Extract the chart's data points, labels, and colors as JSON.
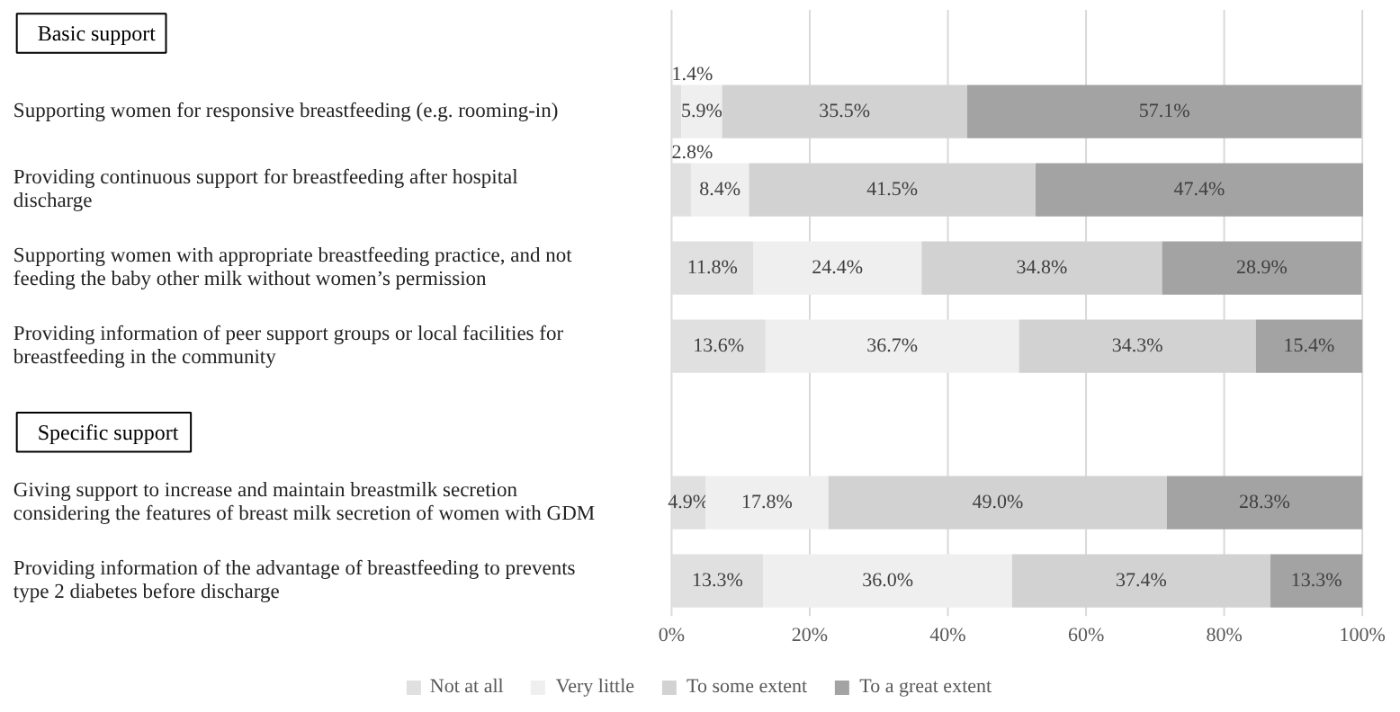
{
  "chart_data": {
    "type": "bar",
    "orientation": "horizontal",
    "stacked": true,
    "categories": [
      "Supporting women for responsive breastfeeding (e.g. rooming-in)",
      "Providing continuous support for breastfeeding after hospital discharge",
      "Supporting women with appropriate breastfeeding practice, and not feeding the baby other milk without women’s permission",
      "Providing information of peer support groups or local facilities for breastfeeding in the community",
      null,
      "Giving support to increase and maintain breastmilk secretion considering the features of breast milk secretion of women with GDM",
      "Providing information of the advantage of breastfeeding to prevents type 2 diabetes before discharge"
    ],
    "series": [
      {
        "name": "Not at all",
        "color": "#e0e0e0",
        "values": [
          1.4,
          2.8,
          11.8,
          13.6,
          null,
          4.9,
          13.3
        ],
        "value_labels": [
          "1.4%",
          "2.8%",
          "11.8%",
          "13.6%",
          null,
          "4.9%",
          "13.3%"
        ]
      },
      {
        "name": "Very little",
        "color": "#efefef",
        "values": [
          5.9,
          8.4,
          24.4,
          36.7,
          null,
          17.8,
          36.0
        ],
        "value_labels": [
          "5.9%",
          "8.4%",
          "24.4%",
          "36.7%",
          null,
          "17.8%",
          "36.0%"
        ]
      },
      {
        "name": "To some extent",
        "color": "#d2d2d2",
        "values": [
          35.5,
          41.5,
          34.8,
          34.3,
          null,
          49.0,
          37.4
        ],
        "value_labels": [
          "35.5%",
          "41.5%",
          "34.8%",
          "34.3%",
          null,
          "49.0%",
          "37.4%"
        ]
      },
      {
        "name": "To a great extent",
        "color": "#a3a3a3",
        "values": [
          57.1,
          47.4,
          28.9,
          15.4,
          null,
          28.3,
          13.3
        ],
        "value_labels": [
          "57.1%",
          "47.4%",
          "28.9%",
          "15.4%",
          null,
          "28.3%",
          "13.3%"
        ]
      }
    ],
    "xlim": [
      0,
      100
    ],
    "xticks": [
      {
        "value": 0,
        "label": "0%"
      },
      {
        "value": 20,
        "label": "20%"
      },
      {
        "value": 40,
        "label": "40%"
      },
      {
        "value": 60,
        "label": "60%"
      },
      {
        "value": 80,
        "label": "80%"
      },
      {
        "value": 100,
        "label": "100%"
      }
    ],
    "grid": "x",
    "legend": "bottom",
    "annotations": [
      "Basic support",
      "Specific support"
    ]
  }
}
